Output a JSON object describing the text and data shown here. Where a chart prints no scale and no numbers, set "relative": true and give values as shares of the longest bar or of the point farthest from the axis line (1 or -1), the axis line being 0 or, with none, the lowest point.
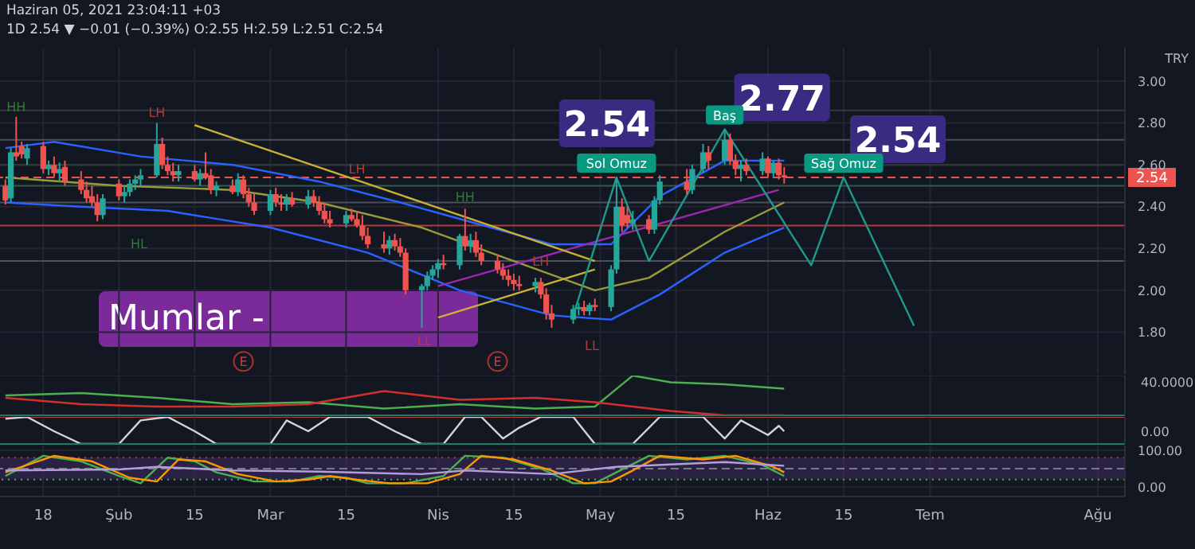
{
  "chart_data": [
    {
      "type": "candlestick",
      "title": "Haziran 05, 2021 23:04:11 +03",
      "subtitle": "1D 2.54 ▼ −0.01 (−0.39%) O:2.55 H:2.59 L:2.51 C:2.54",
      "ylabel": "TRY",
      "x": [
        "2021-01-11",
        "2021-01-12",
        "2021-01-13",
        "2021-01-14",
        "2021-01-15",
        "2021-01-18",
        "2021-01-19",
        "2021-01-20",
        "2021-01-21",
        "2021-01-22",
        "2021-01-25",
        "2021-01-26",
        "2021-01-27",
        "2021-01-28",
        "2021-01-29",
        "2021-02-01",
        "2021-02-02",
        "2021-02-03",
        "2021-02-04",
        "2021-02-05",
        "2021-02-08",
        "2021-02-09",
        "2021-02-10",
        "2021-02-11",
        "2021-02-12",
        "2021-02-15",
        "2021-02-16",
        "2021-02-17",
        "2021-02-18",
        "2021-02-19",
        "2021-02-22",
        "2021-02-23",
        "2021-02-24",
        "2021-02-25",
        "2021-02-26",
        "2021-03-01",
        "2021-03-02",
        "2021-03-03",
        "2021-03-04",
        "2021-03-05",
        "2021-03-08",
        "2021-03-09",
        "2021-03-10",
        "2021-03-11",
        "2021-03-12",
        "2021-03-15",
        "2021-03-16",
        "2021-03-17",
        "2021-03-18",
        "2021-03-19",
        "2021-03-22",
        "2021-03-23",
        "2021-03-24",
        "2021-03-25",
        "2021-03-26",
        "2021-03-29",
        "2021-03-30",
        "2021-03-31",
        "2021-04-01",
        "2021-04-02",
        "2021-04-05",
        "2021-04-06",
        "2021-04-07",
        "2021-04-08",
        "2021-04-09",
        "2021-04-12",
        "2021-04-13",
        "2021-04-14",
        "2021-04-15",
        "2021-04-16",
        "2021-04-19",
        "2021-04-20",
        "2021-04-21",
        "2021-04-22",
        "2021-04-26",
        "2021-04-27",
        "2021-04-28",
        "2021-04-29",
        "2021-04-30",
        "2021-05-03",
        "2021-05-04",
        "2021-05-05",
        "2021-05-06",
        "2021-05-07",
        "2021-05-10",
        "2021-05-11",
        "2021-05-12",
        "2021-05-17",
        "2021-05-18",
        "2021-05-20",
        "2021-05-21",
        "2021-05-24",
        "2021-05-25",
        "2021-05-26",
        "2021-05-27",
        "2021-05-28",
        "2021-05-31",
        "2021-06-01",
        "2021-06-02",
        "2021-06-03",
        "2021-06-04"
      ],
      "ohlc": [
        [
          2.5,
          2.53,
          2.41,
          2.43
        ],
        [
          2.44,
          2.68,
          2.42,
          2.66
        ],
        [
          2.66,
          2.83,
          2.62,
          2.64
        ],
        [
          2.69,
          2.71,
          2.63,
          2.65
        ],
        [
          2.63,
          2.7,
          2.6,
          2.68
        ],
        [
          2.69,
          2.71,
          2.56,
          2.58
        ],
        [
          2.58,
          2.62,
          2.55,
          2.6
        ],
        [
          2.6,
          2.64,
          2.54,
          2.56
        ],
        [
          2.56,
          2.61,
          2.52,
          2.58
        ],
        [
          2.59,
          2.62,
          2.5,
          2.52
        ],
        [
          2.53,
          2.57,
          2.46,
          2.48
        ],
        [
          2.48,
          2.52,
          2.42,
          2.44
        ],
        [
          2.45,
          2.5,
          2.4,
          2.42
        ],
        [
          2.42,
          2.46,
          2.33,
          2.36
        ],
        [
          2.36,
          2.46,
          2.34,
          2.44
        ],
        [
          2.51,
          2.53,
          2.43,
          2.45
        ],
        [
          2.45,
          2.5,
          2.42,
          2.47
        ],
        [
          2.47,
          2.53,
          2.45,
          2.51
        ],
        [
          2.51,
          2.55,
          2.48,
          2.53
        ],
        [
          2.53,
          2.58,
          2.5,
          2.55
        ],
        [
          2.55,
          2.8,
          2.54,
          2.7
        ],
        [
          2.7,
          2.73,
          2.58,
          2.6
        ],
        [
          2.6,
          2.64,
          2.55,
          2.57
        ],
        [
          2.57,
          2.61,
          2.52,
          2.55
        ],
        [
          2.55,
          2.6,
          2.52,
          2.57
        ],
        [
          2.57,
          2.6,
          2.52,
          2.53
        ],
        [
          2.53,
          2.58,
          2.5,
          2.56
        ],
        [
          2.56,
          2.66,
          2.53,
          2.54
        ],
        [
          2.55,
          2.58,
          2.46,
          2.48
        ],
        [
          2.48,
          2.52,
          2.45,
          2.5
        ],
        [
          2.5,
          2.53,
          2.46,
          2.47
        ],
        [
          2.47,
          2.56,
          2.45,
          2.53
        ],
        [
          2.53,
          2.55,
          2.44,
          2.46
        ],
        [
          2.46,
          2.49,
          2.4,
          2.42
        ],
        [
          2.42,
          2.46,
          2.36,
          2.38
        ],
        [
          2.38,
          2.48,
          2.36,
          2.46
        ],
        [
          2.46,
          2.49,
          2.4,
          2.42
        ],
        [
          2.42,
          2.46,
          2.38,
          2.41
        ],
        [
          2.41,
          2.46,
          2.38,
          2.44
        ],
        [
          2.44,
          2.47,
          2.4,
          2.41
        ],
        [
          2.41,
          2.48,
          2.39,
          2.45
        ],
        [
          2.45,
          2.48,
          2.4,
          2.42
        ],
        [
          2.42,
          2.45,
          2.36,
          2.38
        ],
        [
          2.38,
          2.42,
          2.32,
          2.34
        ],
        [
          2.34,
          2.38,
          2.3,
          2.32
        ],
        [
          2.32,
          2.38,
          2.3,
          2.36
        ],
        [
          2.36,
          2.39,
          2.33,
          2.34
        ],
        [
          2.34,
          2.38,
          2.3,
          2.31
        ],
        [
          2.31,
          2.36,
          2.24,
          2.26
        ],
        [
          2.26,
          2.3,
          2.2,
          2.22
        ],
        [
          2.22,
          2.28,
          2.18,
          2.2
        ],
        [
          2.2,
          2.26,
          2.17,
          2.24
        ],
        [
          2.24,
          2.27,
          2.19,
          2.21
        ],
        [
          2.21,
          2.25,
          2.16,
          2.18
        ],
        [
          2.18,
          2.2,
          1.98,
          2.0
        ],
        [
          2.0,
          2.03,
          1.82,
          2.02
        ],
        [
          2.02,
          2.09,
          2.0,
          2.07
        ],
        [
          2.07,
          2.12,
          2.05,
          2.1
        ],
        [
          2.1,
          2.15,
          2.06,
          2.13
        ],
        [
          2.13,
          2.17,
          2.1,
          2.12
        ],
        [
          2.12,
          2.27,
          2.1,
          2.26
        ],
        [
          2.26,
          2.39,
          2.19,
          2.21
        ],
        [
          2.21,
          2.27,
          2.18,
          2.24
        ],
        [
          2.24,
          2.28,
          2.16,
          2.18
        ],
        [
          2.18,
          2.22,
          2.12,
          2.14
        ],
        [
          2.14,
          2.17,
          2.08,
          2.1
        ],
        [
          2.1,
          2.13,
          2.05,
          2.07
        ],
        [
          2.07,
          2.1,
          2.02,
          2.05
        ],
        [
          2.05,
          2.08,
          2.0,
          2.03
        ],
        [
          2.03,
          2.07,
          2.0,
          2.02
        ],
        [
          2.02,
          2.06,
          1.99,
          2.04
        ],
        [
          2.04,
          2.06,
          1.96,
          1.98
        ],
        [
          1.98,
          2.01,
          1.86,
          1.89
        ],
        [
          1.89,
          1.93,
          1.82,
          1.86
        ],
        [
          1.86,
          1.93,
          1.84,
          1.91
        ],
        [
          1.91,
          1.94,
          1.88,
          1.92
        ],
        [
          1.92,
          1.95,
          1.88,
          1.9
        ],
        [
          1.9,
          1.94,
          1.88,
          1.93
        ],
        [
          1.93,
          1.96,
          1.9,
          1.92
        ],
        [
          1.92,
          2.12,
          1.9,
          2.1
        ],
        [
          2.1,
          2.54,
          2.08,
          2.4
        ],
        [
          2.4,
          2.44,
          2.28,
          2.31
        ],
        [
          2.36,
          2.4,
          2.3,
          2.32
        ],
        [
          2.32,
          2.38,
          2.29,
          2.34
        ],
        [
          2.34,
          2.36,
          2.27,
          2.29
        ],
        [
          2.29,
          2.45,
          2.27,
          2.43
        ],
        [
          2.43,
          2.55,
          2.41,
          2.52
        ],
        [
          2.52,
          2.58,
          2.46,
          2.48
        ],
        [
          2.48,
          2.6,
          2.46,
          2.58
        ],
        [
          2.58,
          2.7,
          2.56,
          2.66
        ],
        [
          2.66,
          2.69,
          2.58,
          2.62
        ],
        [
          2.62,
          2.77,
          2.6,
          2.72
        ],
        [
          2.72,
          2.75,
          2.6,
          2.62
        ],
        [
          2.62,
          2.65,
          2.55,
          2.58
        ],
        [
          2.58,
          2.62,
          2.52,
          2.6
        ],
        [
          2.6,
          2.63,
          2.55,
          2.57
        ],
        [
          2.57,
          2.66,
          2.55,
          2.63
        ],
        [
          2.63,
          2.64,
          2.54,
          2.56
        ],
        [
          2.56,
          2.62,
          2.54,
          2.61
        ],
        [
          2.61,
          2.63,
          2.53,
          2.55
        ],
        [
          2.55,
          2.59,
          2.51,
          2.54
        ]
      ],
      "colors": [
        "#ef5350",
        "#26a69a",
        "#ef5350",
        "#ef5350",
        "#26a69a",
        "#ef5350",
        "#26a69a",
        "#ef5350",
        "#26a69a",
        "#ef5350",
        "#ef5350",
        "#ef5350",
        "#ef5350",
        "#ef5350",
        "#26a69a",
        "#ef5350",
        "#26a69a",
        "#26a69a",
        "#26a69a",
        "#26a69a",
        "#26a69a",
        "#ef5350",
        "#ef5350",
        "#ef5350",
        "#26a69a",
        "#ef5350",
        "#26a69a",
        "#ef5350",
        "#ef5350",
        "#26a69a",
        "#ef5350",
        "#26a69a",
        "#ef5350",
        "#ef5350",
        "#ef5350",
        "#26a69a",
        "#ef5350",
        "#ef5350",
        "#26a69a",
        "#ef5350",
        "#26a69a",
        "#ef5350",
        "#ef5350",
        "#ef5350",
        "#ef5350",
        "#26a69a",
        "#ef5350",
        "#ef5350",
        "#ef5350",
        "#ef5350",
        "#ef5350",
        "#26a69a",
        "#ef5350",
        "#ef5350",
        "#ef5350",
        "#26a69a",
        "#26a69a",
        "#26a69a",
        "#26a69a",
        "#ef5350",
        "#26a69a",
        "#ef5350",
        "#26a69a",
        "#ef5350",
        "#ef5350",
        "#ef5350",
        "#ef5350",
        "#ef5350",
        "#ef5350",
        "#ef5350",
        "#26a69a",
        "#ef5350",
        "#ef5350",
        "#ef5350",
        "#26a69a",
        "#26a69a",
        "#ef5350",
        "#26a69a",
        "#ef5350",
        "#26a69a",
        "#26a69a",
        "#ef5350",
        "#ef5350",
        "#26a69a",
        "#ef5350",
        "#26a69a",
        "#26a69a",
        "#ef5350",
        "#26a69a",
        "#26a69a",
        "#ef5350",
        "#26a69a",
        "#ef5350",
        "#ef5350",
        "#26a69a",
        "#ef5350",
        "#26a69a",
        "#ef5350",
        "#26a69a",
        "#ef5350",
        "#ef5350"
      ],
      "series": [
        {
          "type": "line",
          "color": "#2962ff",
          "x": [
            "2021-01-11",
            "2021-01-20",
            "2021-02-05",
            "2021-02-22",
            "2021-03-10",
            "2021-03-25",
            "2021-04-08",
            "2021-04-22",
            "2021-05-03",
            "2021-05-12",
            "2021-05-24",
            "2021-06-04"
          ],
          "values": [
            2.68,
            2.71,
            2.64,
            2.6,
            2.52,
            2.42,
            2.32,
            2.22,
            2.22,
            2.45,
            2.62,
            2.62
          ]
        },
        {
          "type": "line",
          "color": "#2962ff",
          "x": [
            "2021-01-11",
            "2021-01-25",
            "2021-02-10",
            "2021-03-01",
            "2021-03-19",
            "2021-04-05",
            "2021-04-22",
            "2021-05-03",
            "2021-05-12",
            "2021-05-24",
            "2021-06-04"
          ],
          "values": [
            2.42,
            2.4,
            2.38,
            2.3,
            2.18,
            2.0,
            1.88,
            1.86,
            1.98,
            2.18,
            2.3
          ]
        },
        {
          "type": "line",
          "color": "#9a9a3a",
          "x": [
            "2021-01-11",
            "2021-02-01",
            "2021-02-22",
            "2021-03-10",
            "2021-03-29",
            "2021-04-15",
            "2021-04-30",
            "2021-05-10",
            "2021-05-24",
            "2021-06-04"
          ],
          "values": [
            2.54,
            2.5,
            2.48,
            2.42,
            2.3,
            2.14,
            2.0,
            2.06,
            2.28,
            2.42
          ]
        },
        {
          "type": "line",
          "color": "#9c27b0",
          "x": [
            "2021-04-01",
            "2021-06-03"
          ],
          "values": [
            2.02,
            2.48
          ]
        },
        {
          "type": "line",
          "color": "#c9b037",
          "x": [
            "2021-02-15",
            "2021-04-30"
          ],
          "values": [
            2.79,
            2.14
          ]
        },
        {
          "type": "line",
          "color": "#c9b037",
          "x": [
            "2021-04-01",
            "2021-04-30"
          ],
          "values": [
            1.87,
            2.1
          ]
        },
        {
          "type": "line",
          "color": "#1f9a8a",
          "x": [
            "2021-04-26",
            "2021-05-04",
            "2021-05-10",
            "2021-05-24",
            "2021-06-09",
            "2021-06-15",
            "2021-06-28"
          ],
          "values": [
            1.88,
            2.54,
            2.14,
            2.77,
            2.12,
            2.54,
            1.83
          ]
        }
      ],
      "ref_lines": [
        {
          "axis": "y",
          "value": 2.86,
          "color": "#363a45"
        },
        {
          "axis": "y",
          "value": 2.72,
          "color": "#4a4f5c"
        },
        {
          "axis": "y",
          "value": 2.6,
          "color": "#2f3d3a"
        },
        {
          "axis": "y",
          "value": 2.54,
          "label": "2.54",
          "color": "#ef5350",
          "line_style": "dashed"
        },
        {
          "axis": "y",
          "value": 2.5,
          "color": "#2e5c4e"
        },
        {
          "axis": "y",
          "value": 2.42,
          "color": "#4a4f5c"
        },
        {
          "axis": "y",
          "value": 2.31,
          "color": "#b23a3a"
        },
        {
          "axis": "y",
          "value": 2.14,
          "color": "#4a4f5c"
        }
      ],
      "annotations": [
        {
          "text": "2.54",
          "x": "2021-05-04",
          "y": 2.54
        },
        {
          "text": "2.77",
          "x": "2021-05-24",
          "y": 2.77
        },
        {
          "text": "2.54",
          "x": "2021-06-15",
          "y": 2.54
        },
        {
          "text": "Sol Omuz",
          "x": "2021-05-04",
          "y": 2.54
        },
        {
          "text": "Baş",
          "x": "2021-05-24",
          "y": 2.77
        },
        {
          "text": "Sağ Omuz",
          "x": "2021-06-15",
          "y": 2.54
        },
        "Mumlar -",
        {
          "text": "HH",
          "x": "2021-01-13",
          "y": 2.88
        },
        {
          "text": "LH",
          "x": "2021-02-08",
          "y": 2.85
        },
        "HL",
        {
          "text": "LH",
          "x": "2021-03-17",
          "y": 2.58
        },
        "LL",
        {
          "text": "HH",
          "x": "2021-04-06",
          "y": 2.45
        },
        {
          "text": "LH",
          "x": "2021-04-20",
          "y": 2.14
        },
        "LL",
        {
          "text": "E",
          "x": "2021-02-24",
          "y": 1.66
        },
        {
          "text": "E",
          "x": "2021-04-12",
          "y": 1.66
        }
      ],
      "xlim": [
        "2021-01-10",
        "2021-08-06"
      ],
      "xticks": [
        {
          "value": "2021-01-18",
          "label": null
        },
        {
          "value": "2021-02-01",
          "label": null
        },
        {
          "value": "2021-02-15",
          "label": null
        },
        {
          "value": "2021-03-01",
          "label": null
        },
        {
          "value": "2021-03-15",
          "label": null
        },
        {
          "value": "2021-04-01",
          "label": null
        },
        {
          "value": "2021-04-15",
          "label": null
        },
        {
          "value": "2021-05-01",
          "label": null
        },
        {
          "value": "2021-05-15",
          "label": null
        },
        {
          "value": "2021-06-01",
          "label": null
        },
        {
          "value": "2021-06-15",
          "label": null
        },
        {
          "value": "2021-07-01",
          "label": null
        },
        {
          "value": "2021-08-01",
          "label": null
        }
      ],
      "ylim": [
        1.6,
        3.16
      ],
      "yticks": [
        {
          "value": 1.8,
          "label": "1.80"
        },
        {
          "value": 2.0,
          "label": "2.00"
        },
        {
          "value": 2.2,
          "label": "2.20"
        },
        {
          "value": 2.4,
          "label": "2.40"
        },
        {
          "value": 2.6,
          "label": "2.60"
        },
        {
          "value": 2.8,
          "label": "2.80"
        },
        {
          "value": 3.0,
          "label": "3.00"
        }
      ],
      "grid": true,
      "tick_labels": "y"
    },
    {
      "type": "line",
      "series": [
        {
          "color": "#4caf50",
          "x": [
            "2021-01-11",
            "2021-01-25",
            "2021-02-08",
            "2021-02-22",
            "2021-03-08",
            "2021-03-22",
            "2021-04-05",
            "2021-04-19",
            "2021-04-30",
            "2021-05-07",
            "2021-05-14",
            "2021-05-24",
            "2021-06-04"
          ],
          "values": [
            0.5,
            0.56,
            0.44,
            0.28,
            0.33,
            0.17,
            0.28,
            0.17,
            0.22,
            1,
            0.83,
            0.78,
            0.67
          ]
        },
        {
          "color": "#d32f2f",
          "x": [
            "2021-01-11",
            "2021-01-25",
            "2021-02-08",
            "2021-02-22",
            "2021-03-08",
            "2021-03-22",
            "2021-04-05",
            "2021-04-19",
            "2021-04-30",
            "2021-05-07",
            "2021-05-14",
            "2021-05-24",
            "2021-06-04"
          ],
          "values": [
            0.44,
            0.28,
            0.22,
            0.22,
            0.28,
            0.61,
            0.39,
            0.44,
            0.33,
            0.22,
            0.11,
            0,
            0
          ]
        }
      ],
      "relative": true,
      "annotations": [
        "40.0000"
      ],
      "xlim": [
        "2021-01-10",
        "2021-08-06"
      ],
      "xticks": [
        {
          "value": "2021-01-18",
          "label": null
        },
        {
          "value": "2021-02-01",
          "label": null
        },
        {
          "value": "2021-02-15",
          "label": null
        },
        {
          "value": "2021-03-01",
          "label": null
        },
        {
          "value": "2021-03-15",
          "label": null
        },
        {
          "value": "2021-04-01",
          "label": null
        },
        {
          "value": "2021-04-15",
          "label": null
        },
        {
          "value": "2021-05-01",
          "label": null
        },
        {
          "value": "2021-05-15",
          "label": null
        },
        {
          "value": "2021-06-01",
          "label": null
        },
        {
          "value": "2021-06-15",
          "label": null
        },
        {
          "value": "2021-07-01",
          "label": null
        },
        {
          "value": "2021-08-01",
          "label": null
        }
      ],
      "grid": true,
      "tick_labels": false
    },
    {
      "type": "line",
      "series": [
        {
          "color": "#d1d4dc",
          "x": [
            "2021-01-11",
            "2021-01-15",
            "2021-01-20",
            "2021-01-25",
            "2021-02-01",
            "2021-02-05",
            "2021-02-10",
            "2021-02-15",
            "2021-02-19",
            "2021-03-01",
            "2021-03-04",
            "2021-03-08",
            "2021-03-12",
            "2021-03-19",
            "2021-03-24",
            "2021-03-29",
            "2021-04-02",
            "2021-04-06",
            "2021-04-09",
            "2021-04-13",
            "2021-04-16",
            "2021-04-20",
            "2021-04-26",
            "2021-04-30",
            "2021-05-07",
            "2021-05-12",
            "2021-05-20",
            "2021-05-24",
            "2021-05-27",
            "2021-06-01",
            "2021-06-03",
            "2021-06-04"
          ],
          "values": [
            0.93,
            1,
            0.47,
            0,
            0,
            0.87,
            1,
            0.47,
            0,
            0,
            0.87,
            0.47,
            1,
            1,
            0.47,
            0,
            0,
            1,
            1,
            0.2,
            0.6,
            1,
            1,
            0,
            0,
            1,
            1,
            0.2,
            0.87,
            0.33,
            0.67,
            0.47
          ]
        }
      ],
      "relative": true,
      "annotations": [
        "0.00"
      ],
      "ref_lines": [
        {
          "axis": "y",
          "value": 1,
          "color": "#b23a3a"
        }
      ],
      "xlim": [
        "2021-01-10",
        "2021-08-06"
      ],
      "xticks": [
        {
          "value": "2021-01-18",
          "label": null
        },
        {
          "value": "2021-02-01",
          "label": null
        },
        {
          "value": "2021-02-15",
          "label": null
        },
        {
          "value": "2021-03-01",
          "label": null
        },
        {
          "value": "2021-03-15",
          "label": null
        },
        {
          "value": "2021-04-01",
          "label": null
        },
        {
          "value": "2021-04-15",
          "label": null
        },
        {
          "value": "2021-05-01",
          "label": null
        },
        {
          "value": "2021-05-15",
          "label": null
        },
        {
          "value": "2021-06-01",
          "label": null
        },
        {
          "value": "2021-06-15",
          "label": null
        },
        {
          "value": "2021-07-01",
          "label": null
        },
        {
          "value": "2021-08-01",
          "label": null
        }
      ],
      "grid": true,
      "tick_labels": false
    },
    {
      "type": "line",
      "series": [
        {
          "color": "#4caf50",
          "x": [
            "2021-01-11",
            "2021-01-18",
            "2021-01-25",
            "2021-02-01",
            "2021-02-05",
            "2021-02-10",
            "2021-02-15",
            "2021-02-19",
            "2021-02-26",
            "2021-03-05",
            "2021-03-10",
            "2021-03-15",
            "2021-03-19",
            "2021-03-26",
            "2021-04-02",
            "2021-04-06",
            "2021-04-13",
            "2021-04-20",
            "2021-04-26",
            "2021-04-30",
            "2021-05-04",
            "2021-05-10",
            "2021-05-17",
            "2021-05-24",
            "2021-05-31",
            "2021-06-04"
          ],
          "values": [
            30,
            85,
            70,
            30,
            10,
            80,
            70,
            40,
            15,
            15,
            30,
            25,
            10,
            10,
            30,
            85,
            80,
            50,
            10,
            10,
            40,
            85,
            75,
            85,
            60,
            30
          ]
        },
        {
          "color": "#ff9800",
          "x": [
            "2021-01-11",
            "2021-01-20",
            "2021-01-27",
            "2021-02-03",
            "2021-02-08",
            "2021-02-12",
            "2021-02-17",
            "2021-02-23",
            "2021-03-02",
            "2021-03-08",
            "2021-03-12",
            "2021-03-17",
            "2021-03-23",
            "2021-03-30",
            "2021-04-05",
            "2021-04-09",
            "2021-04-15",
            "2021-04-22",
            "2021-04-28",
            "2021-05-03",
            "2021-05-07",
            "2021-05-12",
            "2021-05-20",
            "2021-05-26",
            "2021-06-02",
            "2021-06-04"
          ],
          "values": [
            40,
            85,
            70,
            25,
            15,
            75,
            70,
            35,
            15,
            20,
            30,
            20,
            10,
            10,
            35,
            85,
            75,
            45,
            10,
            15,
            45,
            85,
            75,
            85,
            55,
            40
          ]
        },
        {
          "color": "#b39ddb",
          "x": [
            "2021-01-11",
            "2021-02-01",
            "2021-02-08",
            "2021-02-22",
            "2021-03-10",
            "2021-03-29",
            "2021-04-06",
            "2021-04-22",
            "2021-05-04",
            "2021-05-24",
            "2021-06-04"
          ],
          "values": [
            45,
            48,
            55,
            45,
            42,
            35,
            45,
            35,
            55,
            68,
            58
          ]
        }
      ],
      "ref_lines": [
        {
          "axis": "y",
          "value": 80,
          "color": "#b23a3a",
          "line_style": "dotted"
        },
        {
          "axis": "y",
          "value": 50,
          "color": "#787b86",
          "line_style": "dashed"
        },
        {
          "axis": "y",
          "value": 20,
          "color": "#4caf50",
          "line_style": "dotted"
        }
      ],
      "bands": [
        {
          "axis": "y",
          "from": 20,
          "to": 80,
          "color": "#3b2a5a"
        }
      ],
      "xlim": [
        "2021-01-10",
        "2021-08-06"
      ],
      "xticks": [
        {
          "value": "2021-01-18",
          "label": "18"
        },
        {
          "value": "2021-02-01",
          "label": "Şub"
        },
        {
          "value": "2021-02-15",
          "label": "15"
        },
        {
          "value": "2021-03-01",
          "label": "Mar"
        },
        {
          "value": "2021-03-15",
          "label": "15"
        },
        {
          "value": "2021-04-01",
          "label": "Nis"
        },
        {
          "value": "2021-04-15",
          "label": "15"
        },
        {
          "value": "2021-05-01",
          "label": "May"
        },
        {
          "value": "2021-05-15",
          "label": "15"
        },
        {
          "value": "2021-06-01",
          "label": "Haz"
        },
        {
          "value": "2021-06-15",
          "label": "15"
        },
        {
          "value": "2021-07-01",
          "label": "Tem"
        },
        {
          "value": "2021-08-01",
          "label": "Ağu"
        }
      ],
      "ylim": [
        -26,
        113
      ],
      "yticks": [
        {
          "value": 0,
          "label": "0.00"
        },
        {
          "value": 100,
          "label": "100.00"
        }
      ],
      "grid": true
    }
  ]
}
